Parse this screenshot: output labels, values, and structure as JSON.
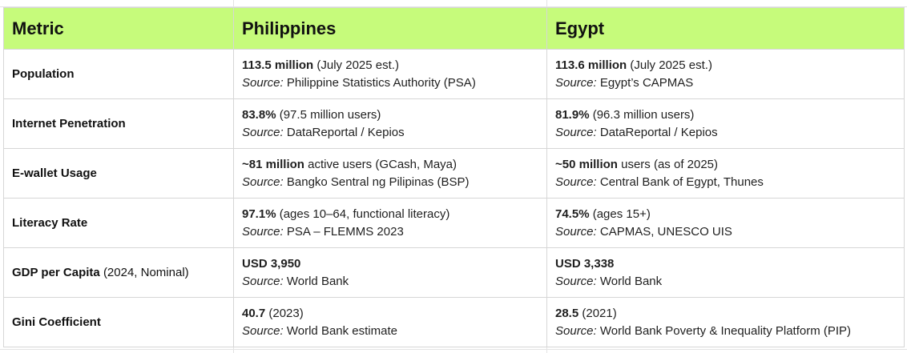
{
  "header": {
    "metric": "Metric",
    "country_a": "Philippines",
    "country_b": "Egypt"
  },
  "rows": [
    {
      "metric": "Population",
      "metric_qualifier": "",
      "a": {
        "value": "113.5 million",
        "detail": "(July 2025 est.)",
        "source": "Philippine Statistics Authority (PSA)"
      },
      "b": {
        "value": "113.6 million",
        "detail": "(July 2025 est.)",
        "source": "Egypt’s CAPMAS"
      }
    },
    {
      "metric": "Internet Penetration",
      "metric_qualifier": "",
      "a": {
        "value": "83.8%",
        "detail": "(97.5 million users)",
        "source": "DataReportal / Kepios"
      },
      "b": {
        "value": "81.9%",
        "detail": "(96.3 million users)",
        "source": "DataReportal / Kepios"
      }
    },
    {
      "metric": "E-wallet Usage",
      "metric_qualifier": "",
      "a": {
        "value": "~81 million",
        "detail": "active users (GCash, Maya)",
        "source": "Bangko Sentral ng Pilipinas (BSP)"
      },
      "b": {
        "value": "~50 million",
        "detail": "users (as of 2025)",
        "source": "Central Bank of Egypt, Thunes"
      }
    },
    {
      "metric": "Literacy Rate",
      "metric_qualifier": "",
      "a": {
        "value": "97.1%",
        "detail": "(ages 10–64, functional literacy)",
        "source": "PSA – FLEMMS 2023"
      },
      "b": {
        "value": "74.5%",
        "detail": "(ages 15+)",
        "source": "CAPMAS, UNESCO UIS"
      }
    },
    {
      "metric": "GDP per Capita",
      "metric_qualifier": "(2024, Nominal)",
      "a": {
        "value": "USD 3,950",
        "detail": "",
        "source": "World Bank"
      },
      "b": {
        "value": "USD 3,338",
        "detail": "",
        "source": "World Bank"
      }
    },
    {
      "metric": "Gini Coefficient",
      "metric_qualifier": "",
      "a": {
        "value": "40.7",
        "detail": "(2023)",
        "source": "World Bank estimate"
      },
      "b": {
        "value": "28.5",
        "detail": "(2021)",
        "source": "World Bank Poverty & Inequality Platform (PIP)"
      }
    }
  ],
  "source_label": "Source:",
  "colors": {
    "header_bg": "#c6fb7b",
    "border": "#d6d6d6",
    "grid": "#e3e3e3"
  }
}
